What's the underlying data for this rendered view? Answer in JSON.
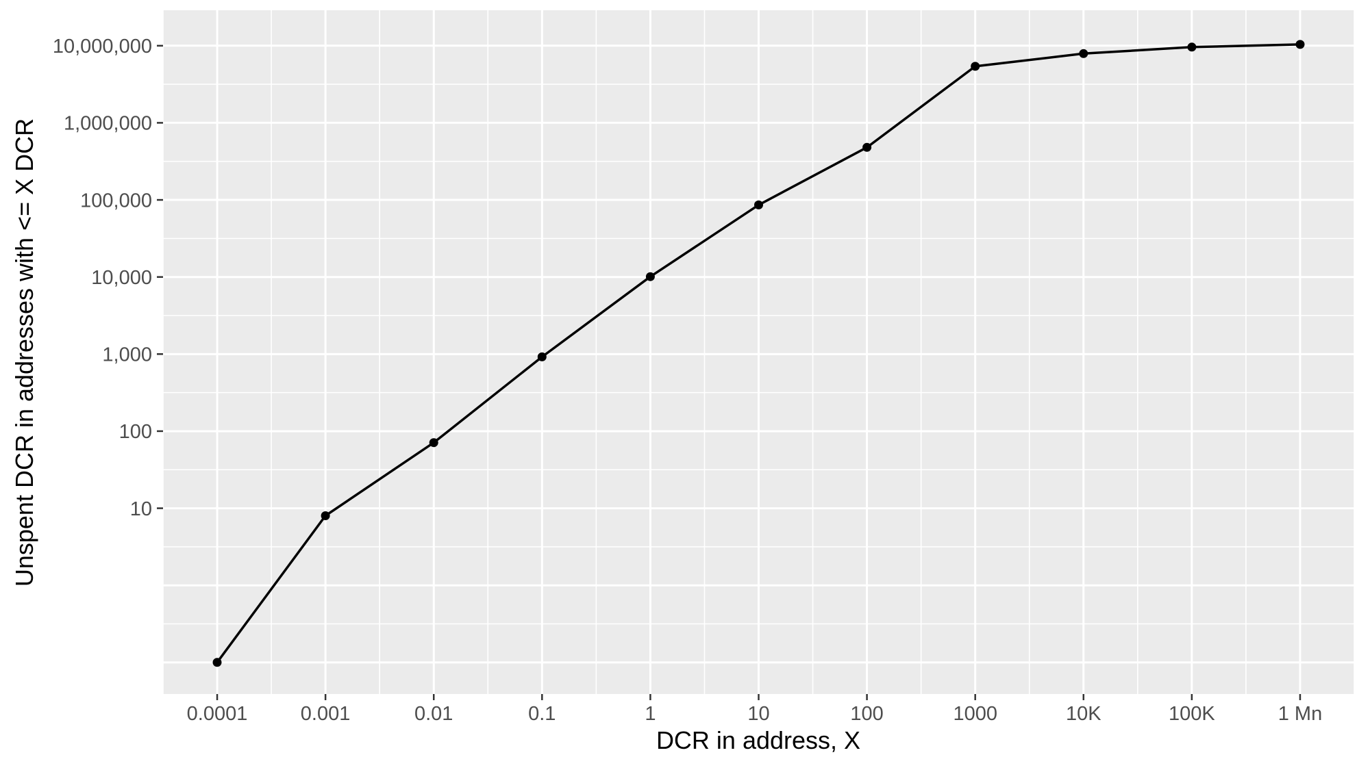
{
  "chart_data": {
    "type": "line",
    "title": "",
    "xlabel": "DCR in address, X",
    "ylabel": "Unspent DCR in addresses with <= X DCR",
    "xscale": "log10",
    "yscale": "log10",
    "x": [
      0.0001,
      0.001,
      0.01,
      0.1,
      1,
      10,
      100,
      1000,
      10000,
      100000,
      1000000
    ],
    "y": [
      0.1,
      8,
      71,
      920,
      10100,
      86000,
      480000,
      5400000,
      7900000,
      9600000,
      10400000
    ],
    "x_tick_values": [
      0.0001,
      0.001,
      0.01,
      0.1,
      1,
      10,
      100,
      1000,
      10000,
      100000,
      1000000
    ],
    "x_tick_labels": [
      "0.0001",
      "0.001",
      "0.01",
      "0.1",
      "1",
      "10",
      "100",
      "1000",
      "10K",
      "100K",
      "1 Mn"
    ],
    "y_tick_values": [
      10,
      100,
      1000,
      10000,
      100000,
      1000000,
      10000000
    ],
    "y_tick_labels": [
      "10",
      "100",
      "1,000",
      "10,000",
      "100,000",
      "1,000,000",
      "10,000,000"
    ],
    "x_log_range": [
      -4.5,
      6.5
    ],
    "y_log_range": [
      -1.41,
      7.46
    ],
    "x_major_grid_log_positions": [
      -4,
      -3,
      -2,
      -1,
      0,
      1,
      2,
      3,
      4,
      5,
      6
    ],
    "y_major_grid_log_positions": [
      -1,
      0,
      1,
      2,
      3,
      4,
      5,
      6,
      7
    ],
    "grid": "major+minor",
    "legend": "none",
    "style": {
      "panel_bg": "#EBEBEB",
      "grid_color": "#FFFFFF",
      "line_color": "#000000",
      "point_color": "#000000",
      "tick_color": "#333333",
      "tick_label_color": "#4D4D4D",
      "axis_title_color": "#000000",
      "page_bg": "#FFFFFF"
    }
  }
}
